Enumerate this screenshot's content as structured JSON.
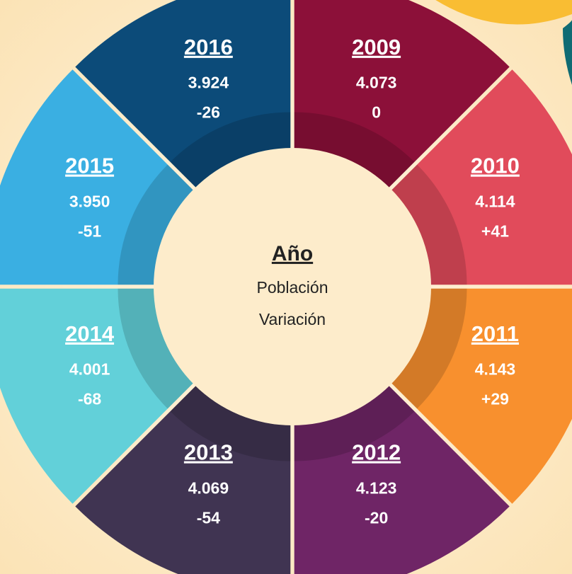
{
  "center": {
    "title": "Año",
    "line1": "Población",
    "line2": "Variación"
  },
  "segments": [
    {
      "year": "2009",
      "population": "4.073",
      "variation": "0",
      "color": "#8c1039"
    },
    {
      "year": "2010",
      "population": "4.114",
      "variation": "+41",
      "color": "#e14b5b"
    },
    {
      "year": "2011",
      "population": "4.143",
      "variation": "+29",
      "color": "#f8902e"
    },
    {
      "year": "2012",
      "population": "4.123",
      "variation": "-20",
      "color": "#6f2566"
    },
    {
      "year": "2013",
      "population": "4.069",
      "variation": "-54",
      "color": "#403452"
    },
    {
      "year": "2014",
      "population": "4.001",
      "variation": "-68",
      "color": "#62d0d9"
    },
    {
      "year": "2015",
      "population": "3.950",
      "variation": "-51",
      "color": "#3aafe2"
    },
    {
      "year": "2016",
      "population": "3.924",
      "variation": "-26",
      "color": "#0c4b79"
    }
  ]
}
